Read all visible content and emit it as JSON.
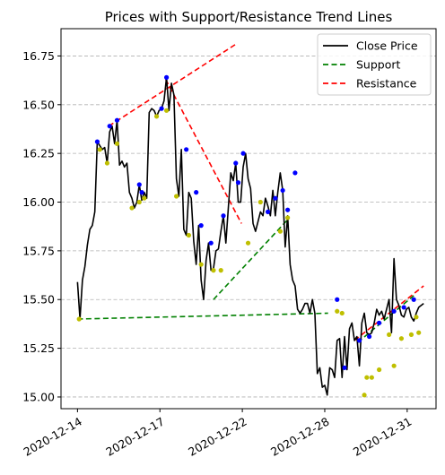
{
  "chart_data": {
    "type": "line",
    "title": "Prices with Support/Resistance Trend Lines",
    "xlabel": "",
    "ylabel": "",
    "x_tick_labels": [
      "2020-12-14",
      "2020-12-17",
      "2020-12-22",
      "2020-12-28",
      "2020-12-31"
    ],
    "x_tick_positions": [
      0,
      10,
      20,
      30,
      40
    ],
    "y_ticks": [
      15.0,
      15.25,
      15.5,
      15.75,
      16.0,
      16.25,
      16.5,
      16.75
    ],
    "y_tick_labels": [
      "15.00",
      "15.25",
      "15.50",
      "15.75",
      "16.00",
      "16.25",
      "16.50",
      "16.75"
    ],
    "xlim": [
      -2,
      43.5
    ],
    "ylim": [
      14.94,
      16.89
    ],
    "grid": "y-dashed",
    "legend_position": "top-right",
    "colors": {
      "close": "#000000",
      "support": "#008000",
      "resistance": "#ff0000",
      "high_points": "#0000ff",
      "low_points": "#bfbf00"
    },
    "series": [
      {
        "name": "Close Price",
        "style": "solid",
        "x": [
          0,
          0.3,
          0.6,
          0.9,
          1.2,
          1.5,
          1.8,
          2.1,
          2.4,
          2.7,
          3.0,
          3.3,
          3.6,
          3.9,
          4.2,
          4.5,
          4.8,
          5.1,
          5.4,
          5.7,
          6.0,
          6.3,
          6.6,
          6.9,
          7.2,
          7.5,
          7.8,
          8.1,
          8.4,
          8.7,
          9.0,
          9.3,
          9.6,
          9.9,
          10.2,
          10.5,
          10.8,
          11.1,
          11.4,
          11.7,
          12.0,
          12.3,
          12.6,
          12.9,
          13.2,
          13.5,
          13.8,
          14.1,
          14.4,
          14.7,
          15.0,
          15.3,
          15.6,
          15.9,
          16.2,
          16.5,
          16.8,
          17.1,
          17.4,
          17.7,
          18.0,
          18.3,
          18.6,
          18.9,
          19.2,
          19.5,
          19.8,
          20.1,
          20.4,
          20.7,
          21.0,
          21.3,
          21.6,
          21.9,
          22.2,
          22.5,
          22.8,
          23.1,
          23.4,
          23.7,
          24.0,
          24.3,
          24.6,
          24.9,
          25.2,
          25.5,
          25.8,
          26.1,
          26.4,
          26.7,
          27.0,
          27.3,
          27.6,
          27.9,
          28.2,
          28.5,
          28.8,
          29.1,
          29.4,
          29.7,
          30.0,
          30.3,
          30.6,
          30.9,
          31.2,
          31.5,
          31.8,
          32.1,
          32.4,
          32.7,
          33.0,
          33.3,
          33.6,
          33.9,
          34.2,
          34.5,
          34.8,
          35.1,
          35.4,
          35.7,
          36.0,
          36.3,
          36.6,
          36.9,
          37.2,
          37.5,
          37.8,
          38.1,
          38.4,
          38.7,
          39.0,
          39.3,
          39.6,
          39.9,
          40.2,
          40.5,
          40.8,
          41.1,
          41.4,
          41.7,
          42.0
        ],
        "values": [
          15.59,
          15.4,
          15.6,
          15.67,
          15.78,
          15.86,
          15.88,
          15.95,
          16.31,
          16.29,
          16.27,
          16.28,
          16.2,
          16.36,
          16.39,
          16.3,
          16.42,
          16.19,
          16.21,
          16.18,
          16.2,
          16.05,
          16.02,
          15.97,
          16.0,
          16.09,
          16.01,
          16.05,
          16.02,
          16.46,
          16.48,
          16.47,
          16.44,
          16.47,
          16.48,
          16.52,
          16.64,
          16.47,
          16.61,
          16.55,
          16.12,
          16.03,
          16.27,
          15.86,
          15.83,
          16.05,
          16.02,
          15.8,
          15.68,
          15.88,
          15.6,
          15.5,
          15.7,
          15.79,
          15.65,
          15.66,
          15.75,
          15.76,
          15.85,
          15.93,
          15.79,
          15.97,
          16.15,
          16.11,
          16.2,
          16.0,
          16.0,
          16.18,
          16.25,
          16.12,
          16.07,
          15.89,
          15.85,
          15.9,
          15.95,
          15.93,
          16.02,
          15.98,
          15.93,
          16.06,
          15.93,
          16.05,
          16.15,
          16.06,
          15.77,
          15.93,
          15.68,
          15.6,
          15.57,
          15.45,
          15.43,
          15.45,
          15.48,
          15.48,
          15.43,
          15.5,
          15.43,
          15.12,
          15.15,
          15.05,
          15.06,
          15.01,
          15.15,
          15.14,
          15.1,
          15.29,
          15.3,
          15.1,
          15.31,
          15.14,
          15.35,
          15.38,
          15.29,
          15.31,
          15.16,
          15.38,
          15.43,
          15.33,
          15.32,
          15.33,
          15.38,
          15.45,
          15.42,
          15.44,
          15.4,
          15.45,
          15.5,
          15.33,
          15.71,
          15.5,
          15.47,
          15.42,
          15.41,
          15.45,
          15.46,
          15.41,
          15.39,
          15.43,
          15.46,
          15.47,
          15.48
        ]
      },
      {
        "name": "Support",
        "style": "dashed",
        "segments": [
          {
            "x": [
              0,
              30.4
            ],
            "values": [
              15.4,
              15.43
            ]
          },
          {
            "x": [
              16.5,
              25.5
            ],
            "values": [
              15.5,
              15.91
            ]
          },
          {
            "x": [
              34.0,
              40.8
            ],
            "values": [
              15.28,
              15.52
            ]
          }
        ]
      },
      {
        "name": "Resistance",
        "style": "dashed",
        "segments": [
          {
            "x": [
              3.8,
              19.2
            ],
            "values": [
              16.39,
              16.81
            ]
          },
          {
            "x": [
              10.7,
              19.9
            ],
            "values": [
              16.63,
              15.89
            ]
          },
          {
            "x": [
              33.6,
              42.0
            ],
            "values": [
              15.29,
              15.57
            ]
          }
        ]
      }
    ],
    "high_points": {
      "x": [
        2.4,
        3.9,
        4.8,
        7.5,
        7.8,
        10.2,
        10.8,
        13.2,
        14.4,
        15.0,
        16.2,
        17.7,
        19.2,
        19.5,
        20.1,
        23.1,
        24.0,
        24.9,
        25.5,
        26.4,
        31.5,
        32.4,
        34.2,
        35.4,
        36.6,
        38.4,
        39.6,
        40.8
      ],
      "values": [
        16.31,
        16.39,
        16.42,
        16.09,
        16.05,
        16.48,
        16.64,
        16.27,
        16.05,
        15.88,
        15.79,
        15.93,
        16.2,
        16.1,
        16.25,
        15.95,
        16.02,
        16.06,
        15.96,
        16.15,
        15.5,
        15.15,
        15.29,
        15.31,
        15.38,
        15.44,
        15.46,
        15.5
      ]
    },
    "low_points": {
      "x": [
        0.2,
        2.7,
        3.6,
        4.8,
        6.6,
        7.5,
        8.1,
        9.6,
        10.8,
        12.0,
        13.5,
        15.0,
        16.5,
        17.4,
        20.7,
        22.2,
        24.6,
        25.5,
        31.5,
        32.1,
        34.8,
        35.1,
        35.7,
        36.6,
        37.8,
        38.4,
        39.3,
        40.5,
        41.1,
        41.4
      ],
      "values": [
        15.4,
        16.27,
        16.2,
        16.3,
        15.97,
        16.0,
        16.02,
        16.44,
        16.47,
        16.03,
        15.83,
        15.68,
        15.65,
        15.65,
        15.79,
        16.0,
        15.85,
        15.92,
        15.44,
        15.43,
        15.01,
        15.1,
        15.1,
        15.14,
        15.32,
        15.16,
        15.3,
        15.32,
        15.41,
        15.33
      ]
    },
    "legend": [
      {
        "label": "Close Price",
        "color": "#000000",
        "style": "solid"
      },
      {
        "label": "Support",
        "color": "#008000",
        "style": "dashed"
      },
      {
        "label": "Resistance",
        "color": "#ff0000",
        "style": "dashed"
      }
    ]
  }
}
